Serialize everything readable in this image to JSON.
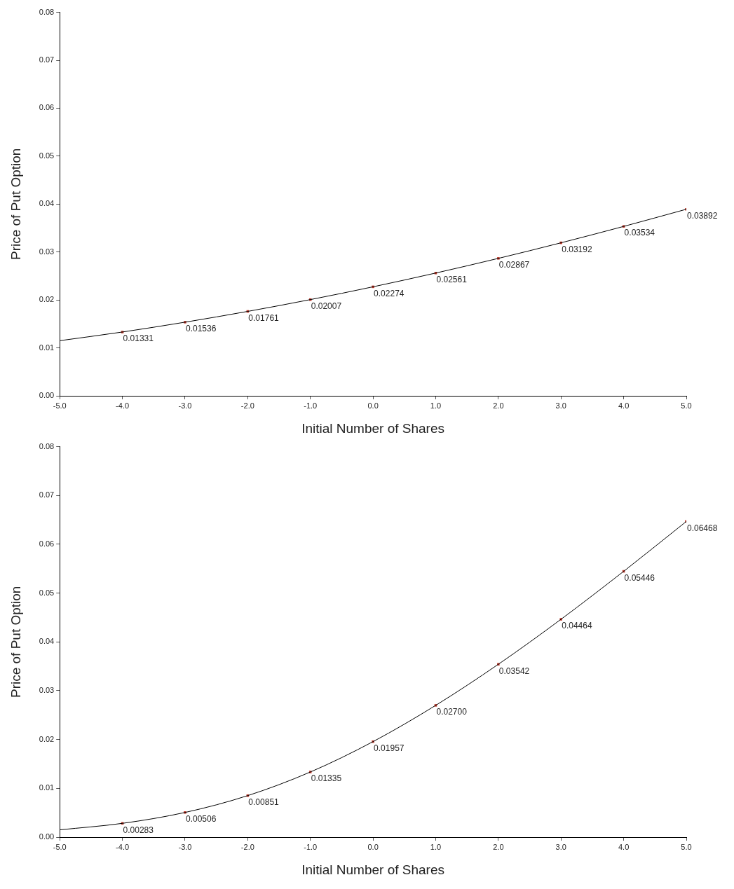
{
  "chart_data": [
    {
      "type": "line",
      "xlabel": "Initial Number of Shares",
      "ylabel": "Price of Put Option",
      "xlim": [
        -5,
        5
      ],
      "xticks": [
        {
          "value": -5,
          "label": "-5.0"
        },
        {
          "value": -4,
          "label": "-4.0"
        },
        {
          "value": -3,
          "label": "-3.0"
        },
        {
          "value": -2,
          "label": "-2.0"
        },
        {
          "value": -1,
          "label": "-1.0"
        },
        {
          "value": 0,
          "label": "0.0"
        },
        {
          "value": 1,
          "label": "1.0"
        },
        {
          "value": 2,
          "label": "2.0"
        },
        {
          "value": 3,
          "label": "3.0"
        },
        {
          "value": 4,
          "label": "4.0"
        },
        {
          "value": 5,
          "label": "5.0"
        }
      ],
      "ylim": [
        0,
        0.08
      ],
      "yticks": [
        {
          "value": 0,
          "label": "0.00"
        },
        {
          "value": 0.01,
          "label": "0.01"
        },
        {
          "value": 0.02,
          "label": "0.02"
        },
        {
          "value": 0.03,
          "label": "0.03"
        },
        {
          "value": 0.04,
          "label": "0.04"
        },
        {
          "value": 0.05,
          "label": "0.05"
        },
        {
          "value": 0.06,
          "label": "0.06"
        },
        {
          "value": 0.07,
          "label": "0.07"
        },
        {
          "value": 0.08,
          "label": "0.08"
        }
      ],
      "grid": false,
      "legend": false,
      "series": [
        {
          "color": "#000000",
          "marker": "none",
          "x": [
            -5,
            -4,
            -3,
            -2,
            -1,
            0,
            1,
            2,
            3,
            4,
            5
          ],
          "values": [
            0.0115,
            0.01331,
            0.01536,
            0.01761,
            0.02007,
            0.02274,
            0.02561,
            0.02867,
            0.03192,
            0.03534,
            0.03892
          ]
        },
        {
          "type": "scatter",
          "color": "#c0392b",
          "marker": "square",
          "x": [
            -4,
            -3,
            -2,
            -1,
            0,
            1,
            2,
            3,
            4,
            5
          ],
          "values": [
            0.01331,
            0.01536,
            0.01761,
            0.02007,
            0.02274,
            0.02561,
            0.02867,
            0.03192,
            0.03534,
            0.03892
          ],
          "value_labels": [
            "0.01331",
            "0.01536",
            "0.01761",
            "0.02007",
            "0.02274",
            "0.02561",
            "0.02867",
            "0.03192",
            "0.03534",
            "0.03892"
          ]
        }
      ]
    },
    {
      "type": "line",
      "xlabel": "Initial Number of Shares",
      "ylabel": "Price of Put Option",
      "xlim": [
        -5,
        5
      ],
      "xticks": [
        {
          "value": -5,
          "label": "-5.0"
        },
        {
          "value": -4,
          "label": "-4.0"
        },
        {
          "value": -3,
          "label": "-3.0"
        },
        {
          "value": -2,
          "label": "-2.0"
        },
        {
          "value": -1,
          "label": "-1.0"
        },
        {
          "value": 0,
          "label": "0.0"
        },
        {
          "value": 1,
          "label": "1.0"
        },
        {
          "value": 2,
          "label": "2.0"
        },
        {
          "value": 3,
          "label": "3.0"
        },
        {
          "value": 4,
          "label": "4.0"
        },
        {
          "value": 5,
          "label": "5.0"
        }
      ],
      "ylim": [
        0,
        0.08
      ],
      "yticks": [
        {
          "value": 0,
          "label": "0.00"
        },
        {
          "value": 0.01,
          "label": "0.01"
        },
        {
          "value": 0.02,
          "label": "0.02"
        },
        {
          "value": 0.03,
          "label": "0.03"
        },
        {
          "value": 0.04,
          "label": "0.04"
        },
        {
          "value": 0.05,
          "label": "0.05"
        },
        {
          "value": 0.06,
          "label": "0.06"
        },
        {
          "value": 0.07,
          "label": "0.07"
        },
        {
          "value": 0.08,
          "label": "0.08"
        }
      ],
      "grid": false,
      "legend": false,
      "series": [
        {
          "color": "#000000",
          "marker": "none",
          "x": [
            -5,
            -4,
            -3,
            -2,
            -1,
            0,
            1,
            2,
            3,
            4,
            5
          ],
          "values": [
            0.0015,
            0.00283,
            0.00506,
            0.00851,
            0.01335,
            0.01957,
            0.027,
            0.03542,
            0.04464,
            0.05446,
            0.06468
          ]
        },
        {
          "type": "scatter",
          "color": "#c0392b",
          "marker": "square",
          "x": [
            -4,
            -3,
            -2,
            -1,
            0,
            1,
            2,
            3,
            4,
            5
          ],
          "values": [
            0.00283,
            0.00506,
            0.00851,
            0.01335,
            0.01957,
            0.027,
            0.03542,
            0.04464,
            0.05446,
            0.06468
          ],
          "value_labels": [
            "0.00283",
            "0.00506",
            "0.00851",
            "0.01335",
            "0.01957",
            "0.02700",
            "0.03542",
            "0.04464",
            "0.05446",
            "0.06468"
          ]
        }
      ]
    }
  ]
}
